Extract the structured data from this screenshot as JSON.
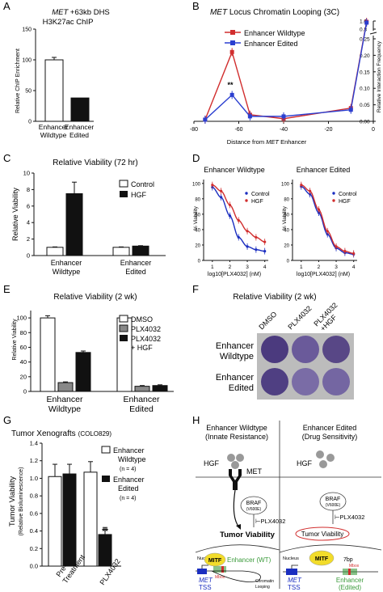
{
  "panel_letters": [
    "A",
    "B",
    "C",
    "D",
    "E",
    "F",
    "G",
    "H"
  ],
  "colors": {
    "red": "#d12e2e",
    "blue": "#2b3fd0",
    "black": "#111111",
    "gray": "#888888",
    "plate": "#5b4a8a",
    "mitf": "#f2dc2a",
    "green": "#3a9a3a",
    "tss": "#1b2ec0"
  },
  "panelA": {
    "title_italic": "MET",
    "title_rest": " +63kb DHS",
    "title2": "H3K27ac ChIP",
    "ylabel": "Relative ChIP Enrichment",
    "categories": [
      [
        "Enhancer",
        "Wildtype"
      ],
      [
        "Enhancer",
        "Edited"
      ]
    ],
    "ytick_labels": [
      "0",
      "50",
      "100",
      "150"
    ]
  },
  "panelB": {
    "title_italic": "MET",
    "title_rest": " Locus Chromatin Looping (3C)",
    "legend": [
      "Enhancer Wildtype",
      "Enhancer Edited"
    ],
    "xlabel_pre": "Distance from ",
    "xlabel_italic": "MET",
    "xlabel_post": " Enhancer",
    "ylabel": "Relative Interaction Frequency",
    "xtick_labels": [
      "-80",
      "-60",
      "-40",
      "-20",
      "0"
    ],
    "ytick_labels": [
      "0.00",
      "0.05",
      "0.10",
      "0.15",
      "0.20",
      "0.25",
      "0.8",
      "1.0"
    ],
    "sig": "**"
  },
  "panelC": {
    "title": "Relative Viability (72 hr)",
    "ylabel": "Relative Viability",
    "legend": [
      "Control",
      "HGF"
    ],
    "groups": [
      [
        "Enhancer",
        "Wildtype"
      ],
      [
        "Enhancer",
        "Edited"
      ]
    ],
    "ytick_labels": [
      "0",
      "2",
      "4",
      "6",
      "8",
      "10"
    ]
  },
  "panelD": {
    "titles": [
      "Enhancer Wildtype",
      "Enhancer Edited"
    ],
    "ylabel": "% Viability",
    "xlabel": "log10[PLX4032] (nM)",
    "legend": [
      "Control",
      "HGF"
    ],
    "xtick_labels": [
      "1",
      "2",
      "3",
      "4"
    ],
    "ytick_labels": [
      "0",
      "20",
      "40",
      "60",
      "80",
      "100"
    ]
  },
  "panelE": {
    "title": "Relative Viability (2 wk)",
    "ylabel": "Relative Viability",
    "legend": [
      "DMSO",
      "PLX4032",
      "PLX4032",
      "+ HGF"
    ],
    "groups": [
      [
        "Enhancer",
        "Wildtype"
      ],
      [
        "Enhancer",
        "Edited"
      ]
    ],
    "ytick_labels": [
      "0",
      "20",
      "40",
      "60",
      "80",
      "100"
    ]
  },
  "panelF": {
    "title": "Relative Viability (2 wk)",
    "col_labels": [
      "DMSO",
      "PLX4032",
      "PLX4032",
      "+HGF"
    ],
    "row_labels": [
      [
        "Enhancer",
        "Wildtype"
      ],
      [
        "Enhancer",
        "Edited"
      ]
    ]
  },
  "panelG": {
    "title": "Tumor Xenografts",
    "title_sub": "(COLO829)",
    "ylabel": "Tumor Viability",
    "ylabel2": "(Relative Bioluminescence)",
    "legend": [
      [
        "Enhancer",
        "Wildtype",
        "(n = 4)"
      ],
      [
        "Enhancer",
        "Edited",
        "(n = 4)"
      ]
    ],
    "categories": [
      [
        "Pre-",
        "Treatment"
      ],
      [
        "PLX4032"
      ]
    ],
    "ytick_labels": [
      "0.0",
      "0.2",
      "0.4",
      "0.6",
      "0.8",
      "1.0",
      "1.2",
      "1.4"
    ],
    "sig": "**"
  },
  "panelH": {
    "left_title": "Enhancer Wildtype",
    "left_sub": "(Innate Resistance)",
    "right_title": "Enhancer Edited",
    "right_sub": "(Drug Sensitivity)",
    "hgf": "HGF",
    "met": "MET",
    "braf": "BRAF",
    "braf_sub": "(V600E)",
    "plx": "⊢PLX4032",
    "tumor": "Tumor Viability",
    "nucleus": "Nucleus",
    "mitf": "MITF",
    "enh_wt": "Enhancer (WT)",
    "mbox": "Mbox",
    "met_gene": "MET",
    "tss": "TSS",
    "chrom": "Chromatin",
    "looping": "Looping",
    "bp": "7bp",
    "enh_edited": "Enhancer",
    "enh_edited2": "(Edited)"
  },
  "chart_data": [
    {
      "type": "bar",
      "panel": "A",
      "title": "MET +63kb DHS H3K27ac ChIP",
      "categories": [
        "Enhancer Wildtype",
        "Enhancer Edited"
      ],
      "values": [
        100,
        38
      ],
      "errors": [
        4,
        0
      ],
      "ylabel": "Relative ChIP Enrichment",
      "ylim": [
        0,
        150
      ]
    },
    {
      "type": "line",
      "panel": "B",
      "title": "MET Locus Chromatin Looping (3C)",
      "xlabel": "Distance from MET Enhancer",
      "ylabel": "Relative Interaction Frequency",
      "series": [
        {
          "name": "Enhancer Wildtype",
          "x": [
            -75,
            -63,
            -55,
            -40,
            -10,
            -3
          ],
          "y": [
            0.005,
            0.21,
            0.02,
            0.008,
            0.04,
            0.98
          ]
        },
        {
          "name": "Enhancer Edited",
          "x": [
            -75,
            -63,
            -55,
            -40,
            -10,
            -3
          ],
          "y": [
            0.005,
            0.08,
            0.015,
            0.015,
            0.035,
            0.96
          ]
        }
      ],
      "xlim": [
        -80,
        0
      ],
      "ylim": [
        0,
        1.0
      ],
      "broken_axis": true
    },
    {
      "type": "bar",
      "panel": "C",
      "title": "Relative Viability (72 hr)",
      "ylabel": "Relative Viability",
      "categories": [
        "Enhancer Wildtype",
        "Enhancer Edited"
      ],
      "series": [
        {
          "name": "Control",
          "values": [
            1.0,
            1.0
          ],
          "errors": [
            0.05,
            0.05
          ]
        },
        {
          "name": "HGF",
          "values": [
            7.5,
            1.15
          ],
          "errors": [
            1.4,
            0.05
          ]
        }
      ],
      "ylim": [
        0,
        10
      ]
    },
    {
      "type": "scatter",
      "panel": "D",
      "title": "Enhancer Wildtype",
      "xlabel": "log10[PLX4032] (nM)",
      "ylabel": "% Viability",
      "xlim": [
        0.5,
        4.2
      ],
      "ylim": [
        0,
        105
      ],
      "series": [
        {
          "name": "Control",
          "x": [
            1,
            1.5,
            2,
            2.5,
            3,
            3.5,
            4
          ],
          "y": [
            95,
            82,
            58,
            30,
            18,
            14,
            12
          ]
        },
        {
          "name": "HGF",
          "x": [
            1,
            1.5,
            2,
            2.5,
            3,
            3.5,
            4
          ],
          "y": [
            98,
            90,
            72,
            52,
            38,
            30,
            24
          ]
        }
      ]
    },
    {
      "type": "scatter",
      "panel": "D",
      "title": "Enhancer Edited",
      "xlabel": "log10[PLX4032] (nM)",
      "ylabel": "% Viability",
      "xlim": [
        0.5,
        4.2
      ],
      "ylim": [
        0,
        105
      ],
      "series": [
        {
          "name": "Control",
          "x": [
            1,
            1.5,
            2,
            2.5,
            3,
            3.5,
            4
          ],
          "y": [
            96,
            86,
            62,
            34,
            16,
            10,
            8
          ]
        },
        {
          "name": "HGF",
          "x": [
            1,
            1.5,
            2,
            2.5,
            3,
            3.5,
            4
          ],
          "y": [
            98,
            90,
            66,
            38,
            18,
            12,
            9
          ]
        }
      ]
    },
    {
      "type": "bar",
      "panel": "E",
      "title": "Relative Viability (2 wk)",
      "ylabel": "Relative Viability",
      "categories": [
        "Enhancer Wildtype",
        "Enhancer Edited"
      ],
      "series": [
        {
          "name": "DMSO",
          "values": [
            100,
            100
          ],
          "errors": [
            3,
            1
          ]
        },
        {
          "name": "PLX4032",
          "values": [
            12,
            7
          ],
          "errors": [
            1,
            1
          ]
        },
        {
          "name": "PLX4032 + HGF",
          "values": [
            53,
            8
          ],
          "errors": [
            2,
            1
          ]
        }
      ],
      "ylim": [
        0,
        110
      ]
    },
    {
      "type": "bar",
      "panel": "G",
      "title": "Tumor Xenografts (COLO829)",
      "ylabel": "Tumor Viability (Relative Bioluminescence)",
      "categories": [
        "Pre-Treatment",
        "PLX4032"
      ],
      "series": [
        {
          "name": "Enhancer Wildtype (n = 4)",
          "values": [
            1.02,
            1.07
          ],
          "errors": [
            0.14,
            0.12
          ]
        },
        {
          "name": "Enhancer Edited (n = 4)",
          "values": [
            1.05,
            0.36
          ],
          "errors": [
            0.11,
            0.08
          ]
        }
      ],
      "ylim": [
        0,
        1.4
      ]
    }
  ]
}
